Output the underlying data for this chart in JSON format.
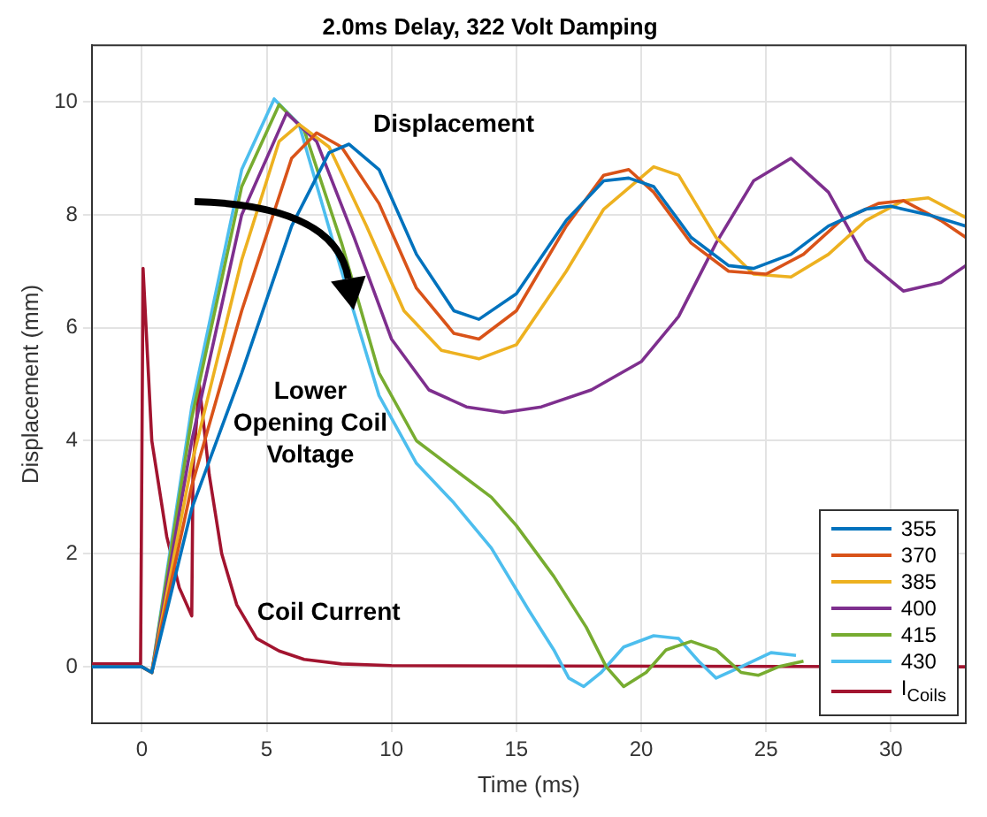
{
  "chart_data": {
    "type": "line",
    "title": "2.0ms Delay, 322 Volt Damping",
    "xlabel": "Time (ms)",
    "ylabel": "Displacement (mm)",
    "xlim": [
      -2,
      33
    ],
    "xticks": [
      0,
      5,
      10,
      15,
      20,
      25,
      30
    ],
    "ylim": [
      -1,
      11
    ],
    "yticks": [
      0,
      2,
      4,
      6,
      8,
      10
    ],
    "grid": true,
    "legend": "bottom right",
    "annotations": [
      "Displacement",
      "Lower Opening Coil Voltage",
      "Coil Current"
    ],
    "series": [
      {
        "name": "355",
        "color": "#0072bd",
        "x": [
          -2,
          0,
          0.4,
          2,
          4,
          6,
          7.5,
          8.3,
          9.5,
          11,
          12.5,
          13.5,
          15,
          17,
          18.5,
          19.5,
          20.5,
          22,
          23.5,
          24.5,
          26,
          27.5,
          29,
          30,
          31.5,
          33
        ],
        "values": [
          0,
          0,
          -0.1,
          2.8,
          5.2,
          7.8,
          9.1,
          9.25,
          8.8,
          7.3,
          6.3,
          6.15,
          6.6,
          7.9,
          8.6,
          8.65,
          8.5,
          7.6,
          7.1,
          7.05,
          7.3,
          7.8,
          8.1,
          8.15,
          8.0,
          7.8
        ]
      },
      {
        "name": "370",
        "color": "#d95319",
        "x": [
          -2,
          0,
          0.4,
          2,
          4,
          6,
          7,
          8,
          9.5,
          11,
          12.5,
          13.5,
          15,
          17,
          18.5,
          19.5,
          20.5,
          22,
          23.5,
          25,
          26.5,
          28,
          29.5,
          30.5,
          32,
          33
        ],
        "values": [
          0,
          0,
          -0.1,
          3.2,
          6.3,
          9.0,
          9.45,
          9.2,
          8.2,
          6.7,
          5.9,
          5.8,
          6.3,
          7.8,
          8.7,
          8.8,
          8.4,
          7.5,
          7.0,
          6.95,
          7.3,
          7.9,
          8.2,
          8.25,
          7.9,
          7.6
        ]
      },
      {
        "name": "385",
        "color": "#edb120",
        "x": [
          -2,
          0,
          0.4,
          2,
          4,
          5.5,
          6.3,
          7.5,
          9,
          10.5,
          12,
          13.5,
          15,
          17,
          18.5,
          20.5,
          21.5,
          23,
          24.5,
          26,
          27.5,
          29,
          30.5,
          31.5,
          33
        ],
        "values": [
          0,
          0,
          -0.1,
          3.6,
          7.2,
          9.3,
          9.6,
          9.2,
          7.8,
          6.3,
          5.6,
          5.45,
          5.7,
          7.0,
          8.1,
          8.85,
          8.7,
          7.6,
          6.95,
          6.9,
          7.3,
          7.9,
          8.25,
          8.3,
          7.95
        ]
      },
      {
        "name": "400",
        "color": "#7e2f8e",
        "x": [
          -2,
          0,
          0.4,
          2,
          4,
          5.8,
          7,
          8.5,
          10,
          11.5,
          13,
          14.5,
          16,
          18,
          20,
          21.5,
          23,
          24.5,
          26,
          27.5,
          29,
          30.5,
          32,
          33
        ],
        "values": [
          0,
          0,
          -0.1,
          4.0,
          8.0,
          9.8,
          9.3,
          7.6,
          5.8,
          4.9,
          4.6,
          4.5,
          4.6,
          4.9,
          5.4,
          6.2,
          7.5,
          8.6,
          9.0,
          8.4,
          7.2,
          6.65,
          6.8,
          7.1
        ]
      },
      {
        "name": "415",
        "color": "#77ac30",
        "x": [
          -2,
          0,
          0.4,
          2,
          4,
          5.5,
          6.5,
          8,
          9.5,
          11,
          12.5,
          14,
          15,
          16.5,
          17.8,
          18.6,
          19.3,
          20.2,
          21,
          22,
          23,
          24,
          24.7,
          25.5,
          26.5
        ],
        "values": [
          0,
          0,
          -0.1,
          4.4,
          8.5,
          9.95,
          9.5,
          7.5,
          5.2,
          4.0,
          3.5,
          3.0,
          2.5,
          1.6,
          0.7,
          0.0,
          -0.35,
          -0.1,
          0.3,
          0.45,
          0.3,
          -0.1,
          -0.15,
          0.0,
          0.1
        ]
      },
      {
        "name": "430",
        "color": "#4dbeee",
        "x": [
          -2,
          0,
          0.4,
          2,
          4,
          5.3,
          6.3,
          8,
          9.5,
          11,
          12.5,
          14,
          15.5,
          16.5,
          17.1,
          17.7,
          18.4,
          19.3,
          20.5,
          21.5,
          22.3,
          23,
          24,
          25.2,
          26.2
        ],
        "values": [
          0,
          0,
          -0.1,
          4.6,
          8.8,
          10.05,
          9.6,
          7.0,
          4.8,
          3.6,
          2.9,
          2.1,
          1.0,
          0.3,
          -0.2,
          -0.35,
          -0.1,
          0.35,
          0.55,
          0.5,
          0.1,
          -0.2,
          0.0,
          0.25,
          0.2
        ]
      },
      {
        "name": "I$_{Coils}$",
        "color": "#a2142f",
        "x": [
          -2,
          -0.05,
          0.05,
          0.4,
          1,
          1.5,
          2.0,
          2.05,
          2.3,
          2.7,
          3.2,
          3.8,
          4.6,
          5.5,
          6.5,
          8,
          10,
          33
        ],
        "values": [
          0.05,
          0.05,
          7.05,
          4.0,
          2.3,
          1.4,
          0.9,
          3.5,
          5.0,
          3.4,
          2.0,
          1.1,
          0.5,
          0.28,
          0.13,
          0.05,
          0.02,
          0.0
        ]
      }
    ]
  }
}
